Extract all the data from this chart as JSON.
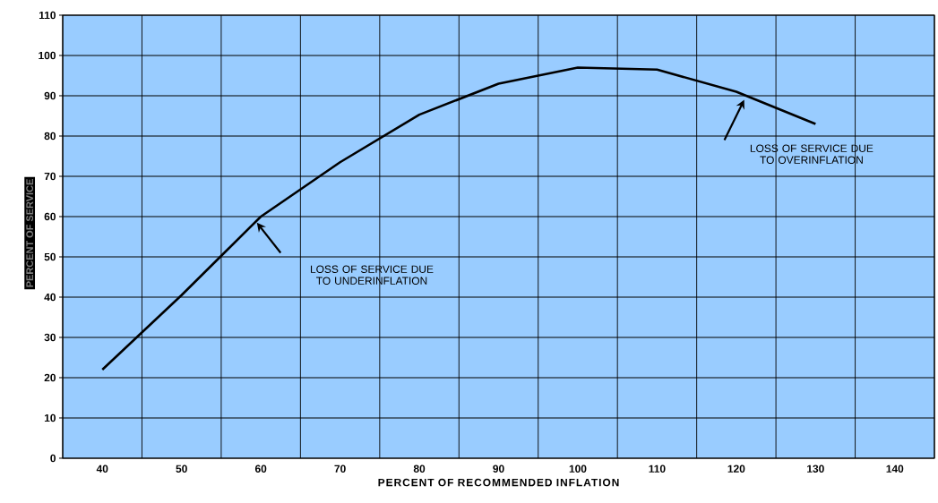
{
  "chart_data": {
    "type": "line",
    "xlabel": "PERCENT OF RECOMMENDED INFLATION",
    "ylabel": "PERCENT OF SERVICE",
    "categories": [
      "40",
      "50",
      "60",
      "70",
      "80",
      "90",
      "100",
      "110",
      "120",
      "130",
      "140"
    ],
    "values": [
      22,
      40.5,
      60,
      73.5,
      85.3,
      93,
      97,
      96.5,
      91,
      83,
      null
    ],
    "color": "#000000",
    "ylim": [
      0,
      110
    ],
    "yticks": [
      0,
      10,
      20,
      30,
      40,
      50,
      60,
      70,
      80,
      90,
      100,
      110
    ],
    "grid": true,
    "marker": "none",
    "line_style": "solid",
    "annotations": [
      "LOSS OF SERVICE DUE TO UNDERINFLATION",
      "LOSS OF SERVICE DUE TO OVERINFLATION"
    ]
  }
}
